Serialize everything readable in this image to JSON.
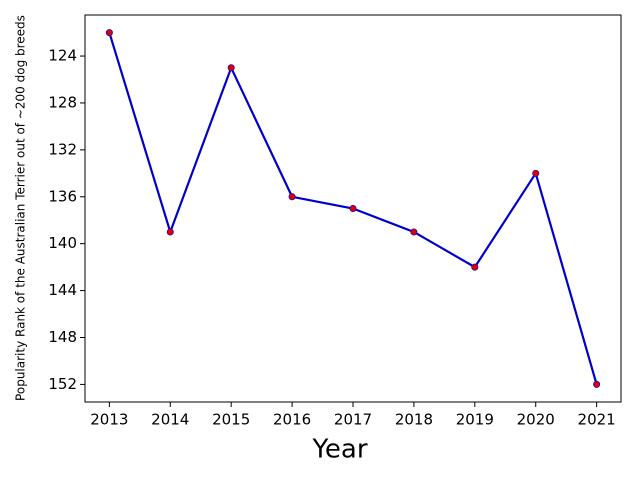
{
  "chart_data": {
    "type": "line",
    "x_label": "Year",
    "y_label": "Popularity Rank of the Australian Terrier out of ~200 dog breeds",
    "x": [
      2013,
      2014,
      2015,
      2016,
      2017,
      2018,
      2019,
      2020,
      2021
    ],
    "series": [
      {
        "color": "#0000cc",
        "marker_color": "#dd0000",
        "values": [
          122,
          139,
          125,
          136,
          137,
          139,
          142,
          134,
          152
        ]
      }
    ],
    "xlim": [
      2012.6,
      2021.4
    ],
    "xticks": [
      2013,
      2014,
      2015,
      2016,
      2017,
      2018,
      2019,
      2020,
      2021
    ],
    "ylim": [
      120.5,
      153.5
    ],
    "yticks": [
      124,
      128,
      132,
      136,
      140,
      144,
      148,
      152
    ],
    "y_inverted": true,
    "grid": false
  }
}
